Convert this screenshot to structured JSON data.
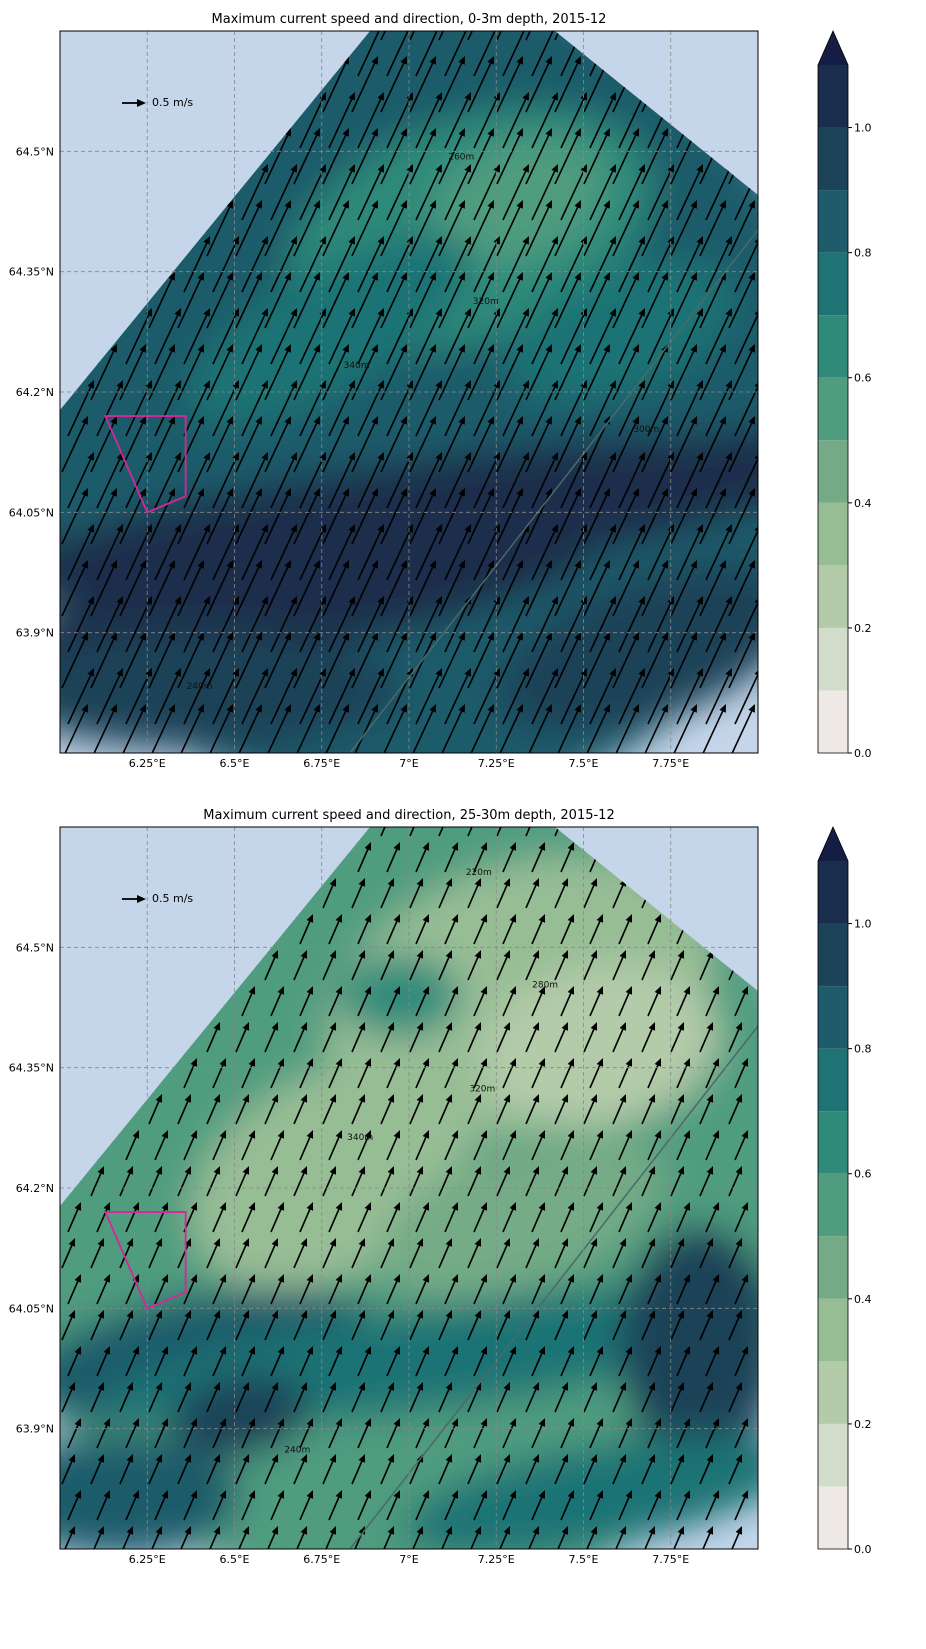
{
  "chart_data": [
    {
      "type": "contour-map",
      "title": "Maximum current speed and direction, 0-3m depth, 2015-12",
      "xlim": [
        6.0,
        8.0
      ],
      "ylim": [
        63.75,
        64.65
      ],
      "xticks": [
        {
          "value": 6.25,
          "label": "6.25°E"
        },
        {
          "value": 6.5,
          "label": "6.5°E"
        },
        {
          "value": 6.75,
          "label": "6.75°E"
        },
        {
          "value": 7,
          "label": "7°E"
        },
        {
          "value": 7.25,
          "label": "7.25°E"
        },
        {
          "value": 7.5,
          "label": "7.5°E"
        },
        {
          "value": 7.75,
          "label": "7.75°E"
        }
      ],
      "yticks": [
        {
          "value": 63.9,
          "label": "63.9°N"
        },
        {
          "value": 64.05,
          "label": "64.05°N"
        },
        {
          "value": 64.2,
          "label": "64.2°N"
        },
        {
          "value": 64.35,
          "label": "64.35°N"
        },
        {
          "value": 64.5,
          "label": "64.5°N"
        }
      ],
      "grid": true,
      "key_label": "0.5 m/s",
      "key_value": 0.5,
      "area": {
        "color": "#d6279a",
        "lon": [
          6.13,
          6.36,
          6.36,
          6.25
        ],
        "lat": [
          64.17,
          64.17,
          64.07,
          64.05
        ]
      },
      "contour_labels": [
        {
          "text": "260m",
          "lon": 7.15,
          "lat": 64.49
        },
        {
          "text": "320m",
          "lon": 7.22,
          "lat": 64.31
        },
        {
          "text": "340m",
          "lon": 6.85,
          "lat": 64.23
        },
        {
          "text": "300m",
          "lon": 7.68,
          "lat": 64.15
        },
        {
          "text": "240m",
          "lon": 6.4,
          "lat": 63.83
        }
      ],
      "colorbar": {
        "levels": [
          0,
          0.1,
          0.2,
          0.3,
          0.4,
          0.5,
          0.6,
          0.7,
          0.8,
          0.9,
          1.0,
          1.1
        ],
        "colors": [
          "#efe9e5",
          "#d2dccb",
          "#b3cba9",
          "#97bd95",
          "#74ab86",
          "#4f9c7f",
          "#2f8a7a",
          "#1f7375",
          "#1f5c6b",
          "#1d4358",
          "#1a2d4c"
        ],
        "extend_color": "#151d44",
        "ticks": [
          {
            "value": 0,
            "label": "0.0"
          },
          {
            "value": 0.2,
            "label": "0.2"
          },
          {
            "value": 0.4,
            "label": "0.4"
          },
          {
            "value": 0.6,
            "label": "0.6"
          },
          {
            "value": 0.8,
            "label": "0.8"
          },
          {
            "value": 1,
            "label": "1.0"
          }
        ]
      }
    },
    {
      "type": "contour-map",
      "title": "Maximum current speed and direction, 25-30m depth, 2015-12",
      "xlim": [
        6.0,
        8.0
      ],
      "ylim": [
        63.75,
        64.65
      ],
      "xticks": [
        {
          "value": 6.25,
          "label": "6.25°E"
        },
        {
          "value": 6.5,
          "label": "6.5°E"
        },
        {
          "value": 6.75,
          "label": "6.75°E"
        },
        {
          "value": 7,
          "label": "7°E"
        },
        {
          "value": 7.25,
          "label": "7.25°E"
        },
        {
          "value": 7.5,
          "label": "7.5°E"
        },
        {
          "value": 7.75,
          "label": "7.75°E"
        }
      ],
      "yticks": [
        {
          "value": 63.9,
          "label": "63.9°N"
        },
        {
          "value": 64.05,
          "label": "64.05°N"
        },
        {
          "value": 64.2,
          "label": "64.2°N"
        },
        {
          "value": 64.35,
          "label": "64.35°N"
        },
        {
          "value": 64.5,
          "label": "64.5°N"
        }
      ],
      "grid": true,
      "key_label": "0.5 m/s",
      "key_value": 0.5,
      "area": {
        "color": "#d6279a",
        "lon": [
          6.13,
          6.36,
          6.36,
          6.25
        ],
        "lat": [
          64.17,
          64.17,
          64.07,
          64.05
        ]
      },
      "contour_labels": [
        {
          "text": "220m",
          "lon": 7.2,
          "lat": 64.59
        },
        {
          "text": "320m",
          "lon": 7.21,
          "lat": 64.32
        },
        {
          "text": "340m",
          "lon": 6.86,
          "lat": 64.26
        },
        {
          "text": "280m",
          "lon": 7.39,
          "lat": 64.45
        },
        {
          "text": "240m",
          "lon": 6.68,
          "lat": 63.87
        }
      ],
      "colorbar": {
        "levels": [
          0,
          0.1,
          0.2,
          0.3,
          0.4,
          0.5,
          0.6,
          0.7,
          0.8,
          0.9,
          1.0,
          1.1
        ],
        "colors": [
          "#efe9e5",
          "#d2dccb",
          "#b3cba9",
          "#97bd95",
          "#74ab86",
          "#4f9c7f",
          "#2f8a7a",
          "#1f7375",
          "#1f5c6b",
          "#1d4358",
          "#1a2d4c"
        ],
        "extend_color": "#151d44",
        "ticks": [
          {
            "value": 0,
            "label": "0.0"
          },
          {
            "value": 0.2,
            "label": "0.2"
          },
          {
            "value": 0.4,
            "label": "0.4"
          },
          {
            "value": 0.6,
            "label": "0.6"
          },
          {
            "value": 0.8,
            "label": "0.8"
          },
          {
            "value": 1,
            "label": "1.0"
          }
        ]
      }
    }
  ]
}
